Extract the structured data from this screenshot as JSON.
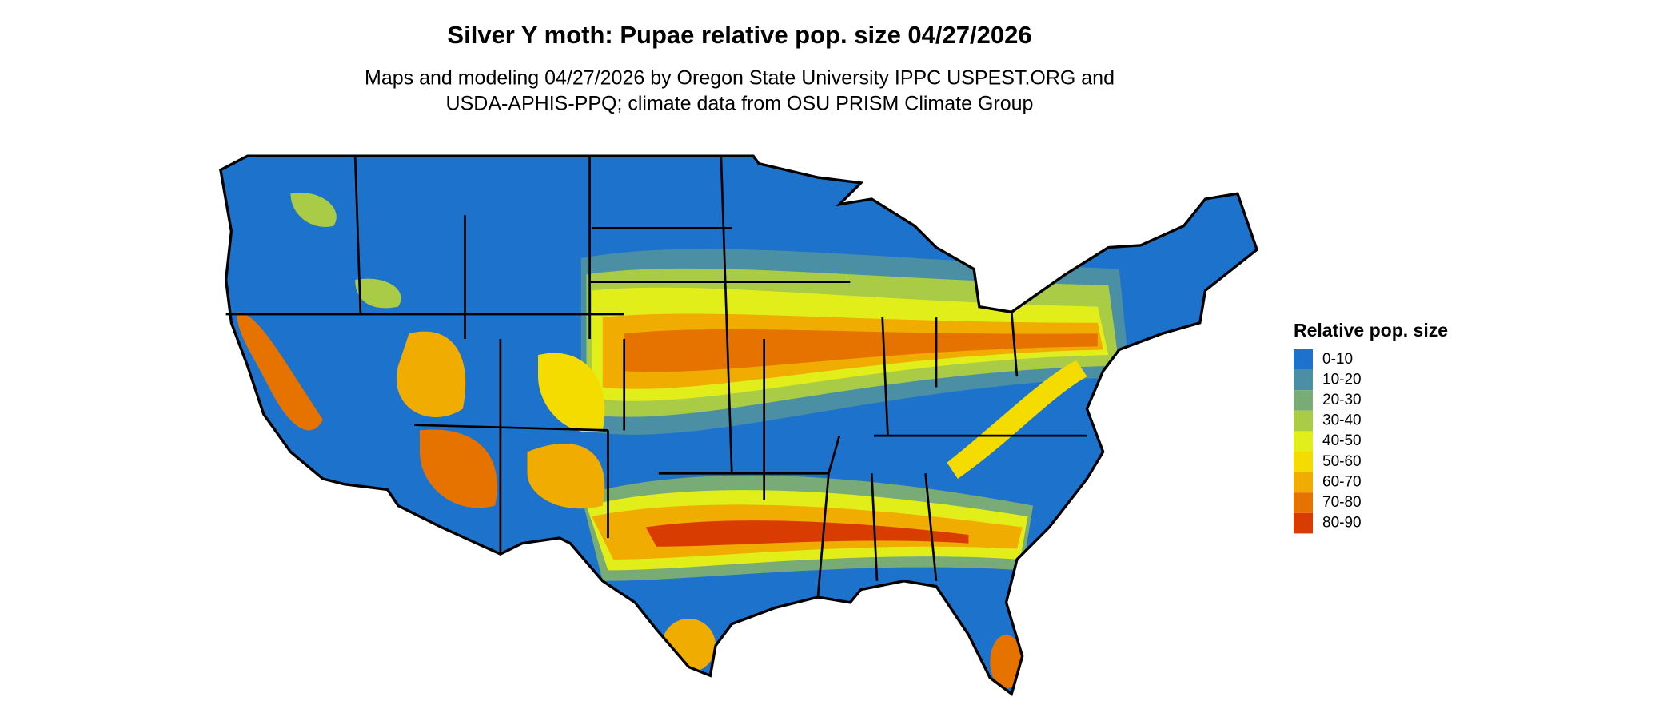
{
  "title": "Silver Y moth: Pupae relative pop. size 04/27/2026",
  "subtitle": [
    "Maps and modeling 04/27/2026 by Oregon State University IPPC USPEST.ORG and",
    "USDA-APHIS-PPQ; climate data from OSU PRISM Climate Group"
  ],
  "legend": {
    "title": "Relative pop. size",
    "items": [
      {
        "label": "0-10",
        "color": "#1d72cc"
      },
      {
        "label": "10-20",
        "color": "#4b8fa5"
      },
      {
        "label": "20-30",
        "color": "#78ab76"
      },
      {
        "label": "30-40",
        "color": "#a9cb45"
      },
      {
        "label": "40-50",
        "color": "#e2ee19"
      },
      {
        "label": "50-60",
        "color": "#f5dc00"
      },
      {
        "label": "60-70",
        "color": "#f0ac00"
      },
      {
        "label": "70-80",
        "color": "#e67300"
      },
      {
        "label": "80-90",
        "color": "#d93c00"
      }
    ]
  }
}
